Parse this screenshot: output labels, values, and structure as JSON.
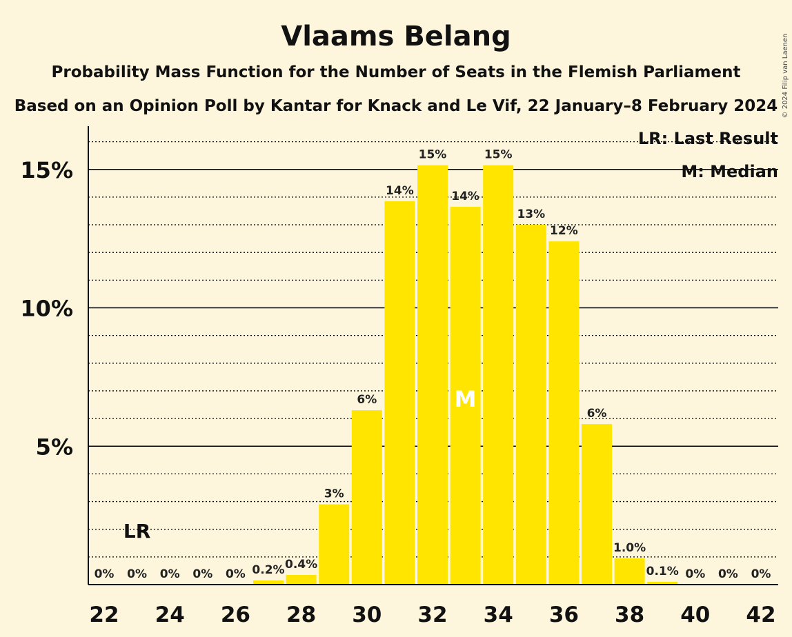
{
  "header": {
    "title": "Vlaams Belang",
    "subtitle": "Probability Mass Function for the Number of Seats in the Flemish Parliament",
    "subtitle2": "Based on an Opinion Poll by Kantar for Knack and Le Vif, 22 January–8 February 2024"
  },
  "copyright": "© 2024 Filip van Laenen",
  "legend": {
    "lr": "LR: Last Result",
    "median": "M: Median"
  },
  "markers": {
    "last_result_label": "LR",
    "last_result_seat": 23,
    "median_label": "M",
    "median_seat": 33
  },
  "colors": {
    "background": "#fdf6dd",
    "bar": "#ffe500",
    "axis": "#000000"
  },
  "chart_data": {
    "type": "bar",
    "title": "Vlaams Belang",
    "xlabel": "",
    "ylabel": "",
    "categories": [
      22,
      23,
      24,
      25,
      26,
      27,
      28,
      29,
      30,
      31,
      32,
      33,
      34,
      35,
      36,
      37,
      38,
      39,
      40,
      41,
      42
    ],
    "values": [
      0,
      0,
      0,
      0,
      0,
      0.15,
      0.35,
      2.9,
      6.3,
      13.85,
      15.15,
      13.65,
      15.15,
      13.0,
      12.4,
      5.8,
      0.95,
      0.1,
      0,
      0,
      0
    ],
    "data_labels": [
      "0%",
      "0%",
      "0%",
      "0%",
      "0%",
      "0.2%",
      "0.4%",
      "3%",
      "6%",
      "14%",
      "15%",
      "14%",
      "15%",
      "13%",
      "12%",
      "6%",
      "1.0%",
      "0.1%",
      "0%",
      "0%",
      "0%"
    ],
    "x_tick_values": [
      22,
      24,
      26,
      28,
      30,
      32,
      34,
      36,
      38,
      40,
      42
    ],
    "x_tick_labels": [
      "22",
      "24",
      "26",
      "28",
      "30",
      "32",
      "34",
      "36",
      "38",
      "40",
      "42"
    ],
    "y_major_ticks": [
      5,
      10,
      15
    ],
    "y_tick_labels": [
      "5%",
      "10%",
      "15%"
    ],
    "y_minor_step": 1,
    "ylim": [
      0,
      16.5
    ],
    "grid": true,
    "legend_position": "top-right"
  }
}
